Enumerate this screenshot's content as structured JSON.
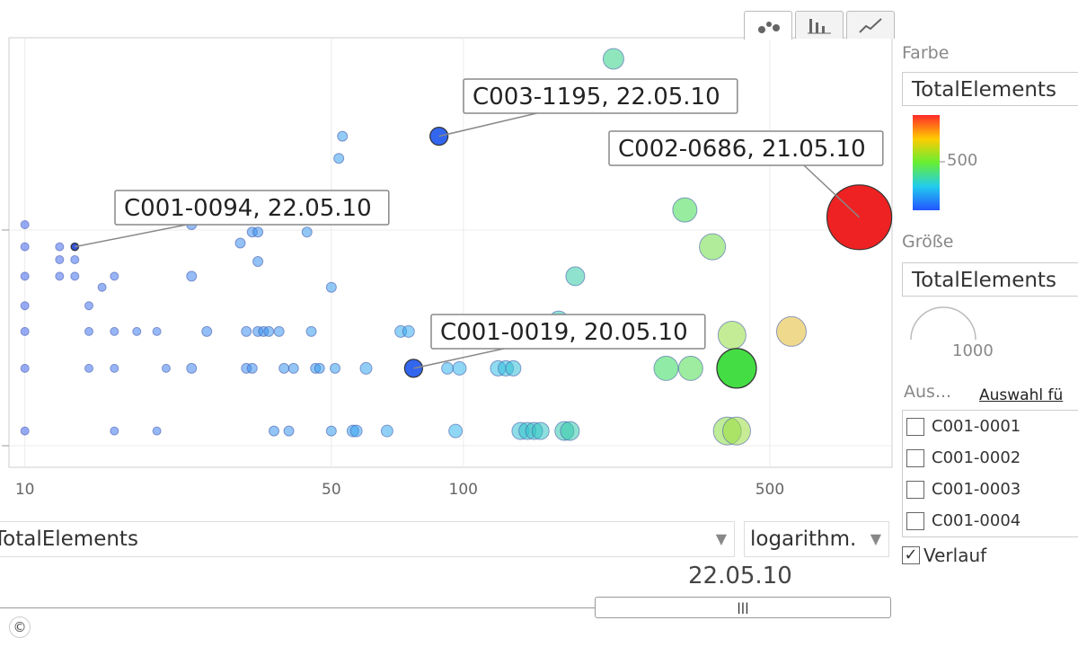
{
  "chart_data": {
    "type": "scatter",
    "xscale": "log",
    "xlim": [
      9.2,
      950
    ],
    "x_ticks": [
      10,
      50,
      100,
      500
    ],
    "x_tick_labels": [
      "10",
      "50",
      "100",
      "500"
    ],
    "grid": true,
    "color_scale": {
      "metric": "TotalElements",
      "tick_label": "500"
    },
    "size_scale": {
      "metric": "TotalElements",
      "tick_label": "1000"
    },
    "points": [
      {
        "x": 10,
        "y": 6.0,
        "s": 3
      },
      {
        "x": 10,
        "y": 5.4,
        "s": 3
      },
      {
        "x": 10,
        "y": 4.6,
        "s": 3
      },
      {
        "x": 10,
        "y": 3.8,
        "s": 3
      },
      {
        "x": 10,
        "y": 3.1,
        "s": 3
      },
      {
        "x": 10,
        "y": 2.1,
        "s": 3
      },
      {
        "x": 10,
        "y": 0.4,
        "s": 3
      },
      {
        "x": 12,
        "y": 5.4,
        "s": 3
      },
      {
        "x": 12,
        "y": 5.05,
        "s": 3
      },
      {
        "x": 12,
        "y": 4.6,
        "s": 3
      },
      {
        "x": 13,
        "y": 5.4,
        "s": 3
      },
      {
        "x": 13,
        "y": 5.05,
        "s": 3
      },
      {
        "x": 13,
        "y": 4.6,
        "s": 3
      },
      {
        "x": 14,
        "y": 2.1,
        "s": 3
      },
      {
        "x": 14,
        "y": 3.1,
        "s": 3
      },
      {
        "x": 14,
        "y": 3.8,
        "s": 3
      },
      {
        "x": 15,
        "y": 4.3,
        "s": 3
      },
      {
        "x": 16,
        "y": 4.6,
        "s": 3
      },
      {
        "x": 16,
        "y": 3.1,
        "s": 3
      },
      {
        "x": 16,
        "y": 2.1,
        "s": 3
      },
      {
        "x": 16,
        "y": 0.4,
        "s": 3
      },
      {
        "x": 18,
        "y": 3.1,
        "s": 3
      },
      {
        "x": 20,
        "y": 0.4,
        "s": 3
      },
      {
        "x": 20,
        "y": 3.1,
        "s": 3
      },
      {
        "x": 21,
        "y": 2.1,
        "s": 3
      },
      {
        "x": 24,
        "y": 6.0,
        "s": 4
      },
      {
        "x": 24,
        "y": 4.6,
        "s": 4
      },
      {
        "x": 24,
        "y": 2.1,
        "s": 4
      },
      {
        "x": 26,
        "y": 3.1,
        "s": 4
      },
      {
        "x": 31,
        "y": 5.5,
        "s": 4
      },
      {
        "x": 32,
        "y": 3.1,
        "s": 4
      },
      {
        "x": 32,
        "y": 2.1,
        "s": 4
      },
      {
        "x": 33,
        "y": 2.1,
        "s": 4
      },
      {
        "x": 33,
        "y": 5.8,
        "s": 4
      },
      {
        "x": 34,
        "y": 5.8,
        "s": 4
      },
      {
        "x": 34,
        "y": 5.0,
        "s": 4
      },
      {
        "x": 34,
        "y": 3.1,
        "s": 4
      },
      {
        "x": 35,
        "y": 3.1,
        "s": 4
      },
      {
        "x": 36,
        "y": 3.1,
        "s": 4
      },
      {
        "x": 37,
        "y": 0.4,
        "s": 4
      },
      {
        "x": 38,
        "y": 3.1,
        "s": 4
      },
      {
        "x": 39,
        "y": 2.1,
        "s": 4
      },
      {
        "x": 40,
        "y": 0.4,
        "s": 4
      },
      {
        "x": 41,
        "y": 2.1,
        "s": 4
      },
      {
        "x": 44,
        "y": 5.8,
        "s": 4
      },
      {
        "x": 45,
        "y": 3.1,
        "s": 4
      },
      {
        "x": 46,
        "y": 2.1,
        "s": 4
      },
      {
        "x": 47,
        "y": 2.1,
        "s": 4
      },
      {
        "x": 50,
        "y": 0.4,
        "s": 4
      },
      {
        "x": 50,
        "y": 4.3,
        "s": 4
      },
      {
        "x": 51,
        "y": 2.1,
        "s": 4
      },
      {
        "x": 52,
        "y": 7.8,
        "s": 4
      },
      {
        "x": 53,
        "y": 8.4,
        "s": 4
      },
      {
        "x": 56,
        "y": 0.4,
        "s": 5
      },
      {
        "x": 57,
        "y": 0.4,
        "s": 5
      },
      {
        "x": 60,
        "y": 2.1,
        "s": 5
      },
      {
        "x": 67,
        "y": 0.4,
        "s": 5
      },
      {
        "x": 72,
        "y": 3.1,
        "s": 5
      },
      {
        "x": 75,
        "y": 3.1,
        "s": 5
      },
      {
        "x": 92,
        "y": 2.1,
        "s": 5
      },
      {
        "x": 96,
        "y": 0.4,
        "s": 6
      },
      {
        "x": 98,
        "y": 2.1,
        "s": 6
      },
      {
        "x": 120,
        "y": 2.1,
        "s": 7
      },
      {
        "x": 125,
        "y": 2.1,
        "s": 7
      },
      {
        "x": 130,
        "y": 2.1,
        "s": 7
      },
      {
        "x": 135,
        "y": 0.4,
        "s": 8
      },
      {
        "x": 140,
        "y": 0.4,
        "s": 8
      },
      {
        "x": 145,
        "y": 0.4,
        "s": 8
      },
      {
        "x": 150,
        "y": 0.4,
        "s": 8
      },
      {
        "x": 165,
        "y": 3.4,
        "s": 9
      },
      {
        "x": 170,
        "y": 0.4,
        "s": 9
      },
      {
        "x": 175,
        "y": 0.4,
        "s": 9
      },
      {
        "x": 180,
        "y": 4.6,
        "s": 9
      },
      {
        "x": 220,
        "y": 10.5,
        "s": 10
      },
      {
        "x": 290,
        "y": 2.1,
        "s": 12
      },
      {
        "x": 320,
        "y": 6.4,
        "s": 12
      },
      {
        "x": 330,
        "y": 2.1,
        "s": 12
      },
      {
        "x": 370,
        "y": 5.4,
        "s": 13
      },
      {
        "x": 410,
        "y": 3.0,
        "s": 14
      },
      {
        "x": 400,
        "y": 0.4,
        "s": 14
      },
      {
        "x": 420,
        "y": 0.4,
        "s": 14
      },
      {
        "x": 420,
        "y": 2.1,
        "s": 14
      },
      {
        "x": 560,
        "y": 3.1,
        "s": 15
      },
      {
        "x": 800,
        "y": 6.2,
        "s": 20
      }
    ],
    "trail": {
      "x_from": 77,
      "x_to": 420,
      "y": 2.1
    },
    "labels": [
      {
        "text": "C003-1195, 22.05.10",
        "x": 88,
        "y": 8.4
      },
      {
        "text": "C002-0686, 21.05.10",
        "x": 800,
        "y": 6.2
      },
      {
        "text": "C001-0094, 22.05.10",
        "x": 13,
        "y": 5.4
      },
      {
        "text": "C001-0019, 20.05.10",
        "x": 77,
        "y": 2.1
      }
    ]
  },
  "tabs": {
    "scatter_icon": "bubble-chart-icon",
    "bar_icon": "bar-chart-icon",
    "line_icon": "line-chart-icon"
  },
  "sidebar": {
    "color_label": "Farbe",
    "color_value": "TotalElements",
    "size_label": "Größe",
    "size_value": "TotalElements",
    "color_legend_tick": "500",
    "size_legend_value": "1000",
    "selection_label": "Aus...",
    "selection_link": "Auswahl fü",
    "list": [
      "C001-0001",
      "C001-0002",
      "C001-0003",
      "C001-0004"
    ],
    "trail_label": "Verlauf",
    "trail_checked": true
  },
  "bottom": {
    "x_metric": "TotalElements",
    "scale": "logarithm.",
    "date": "22.05.10"
  },
  "copyright_symbol": "©"
}
